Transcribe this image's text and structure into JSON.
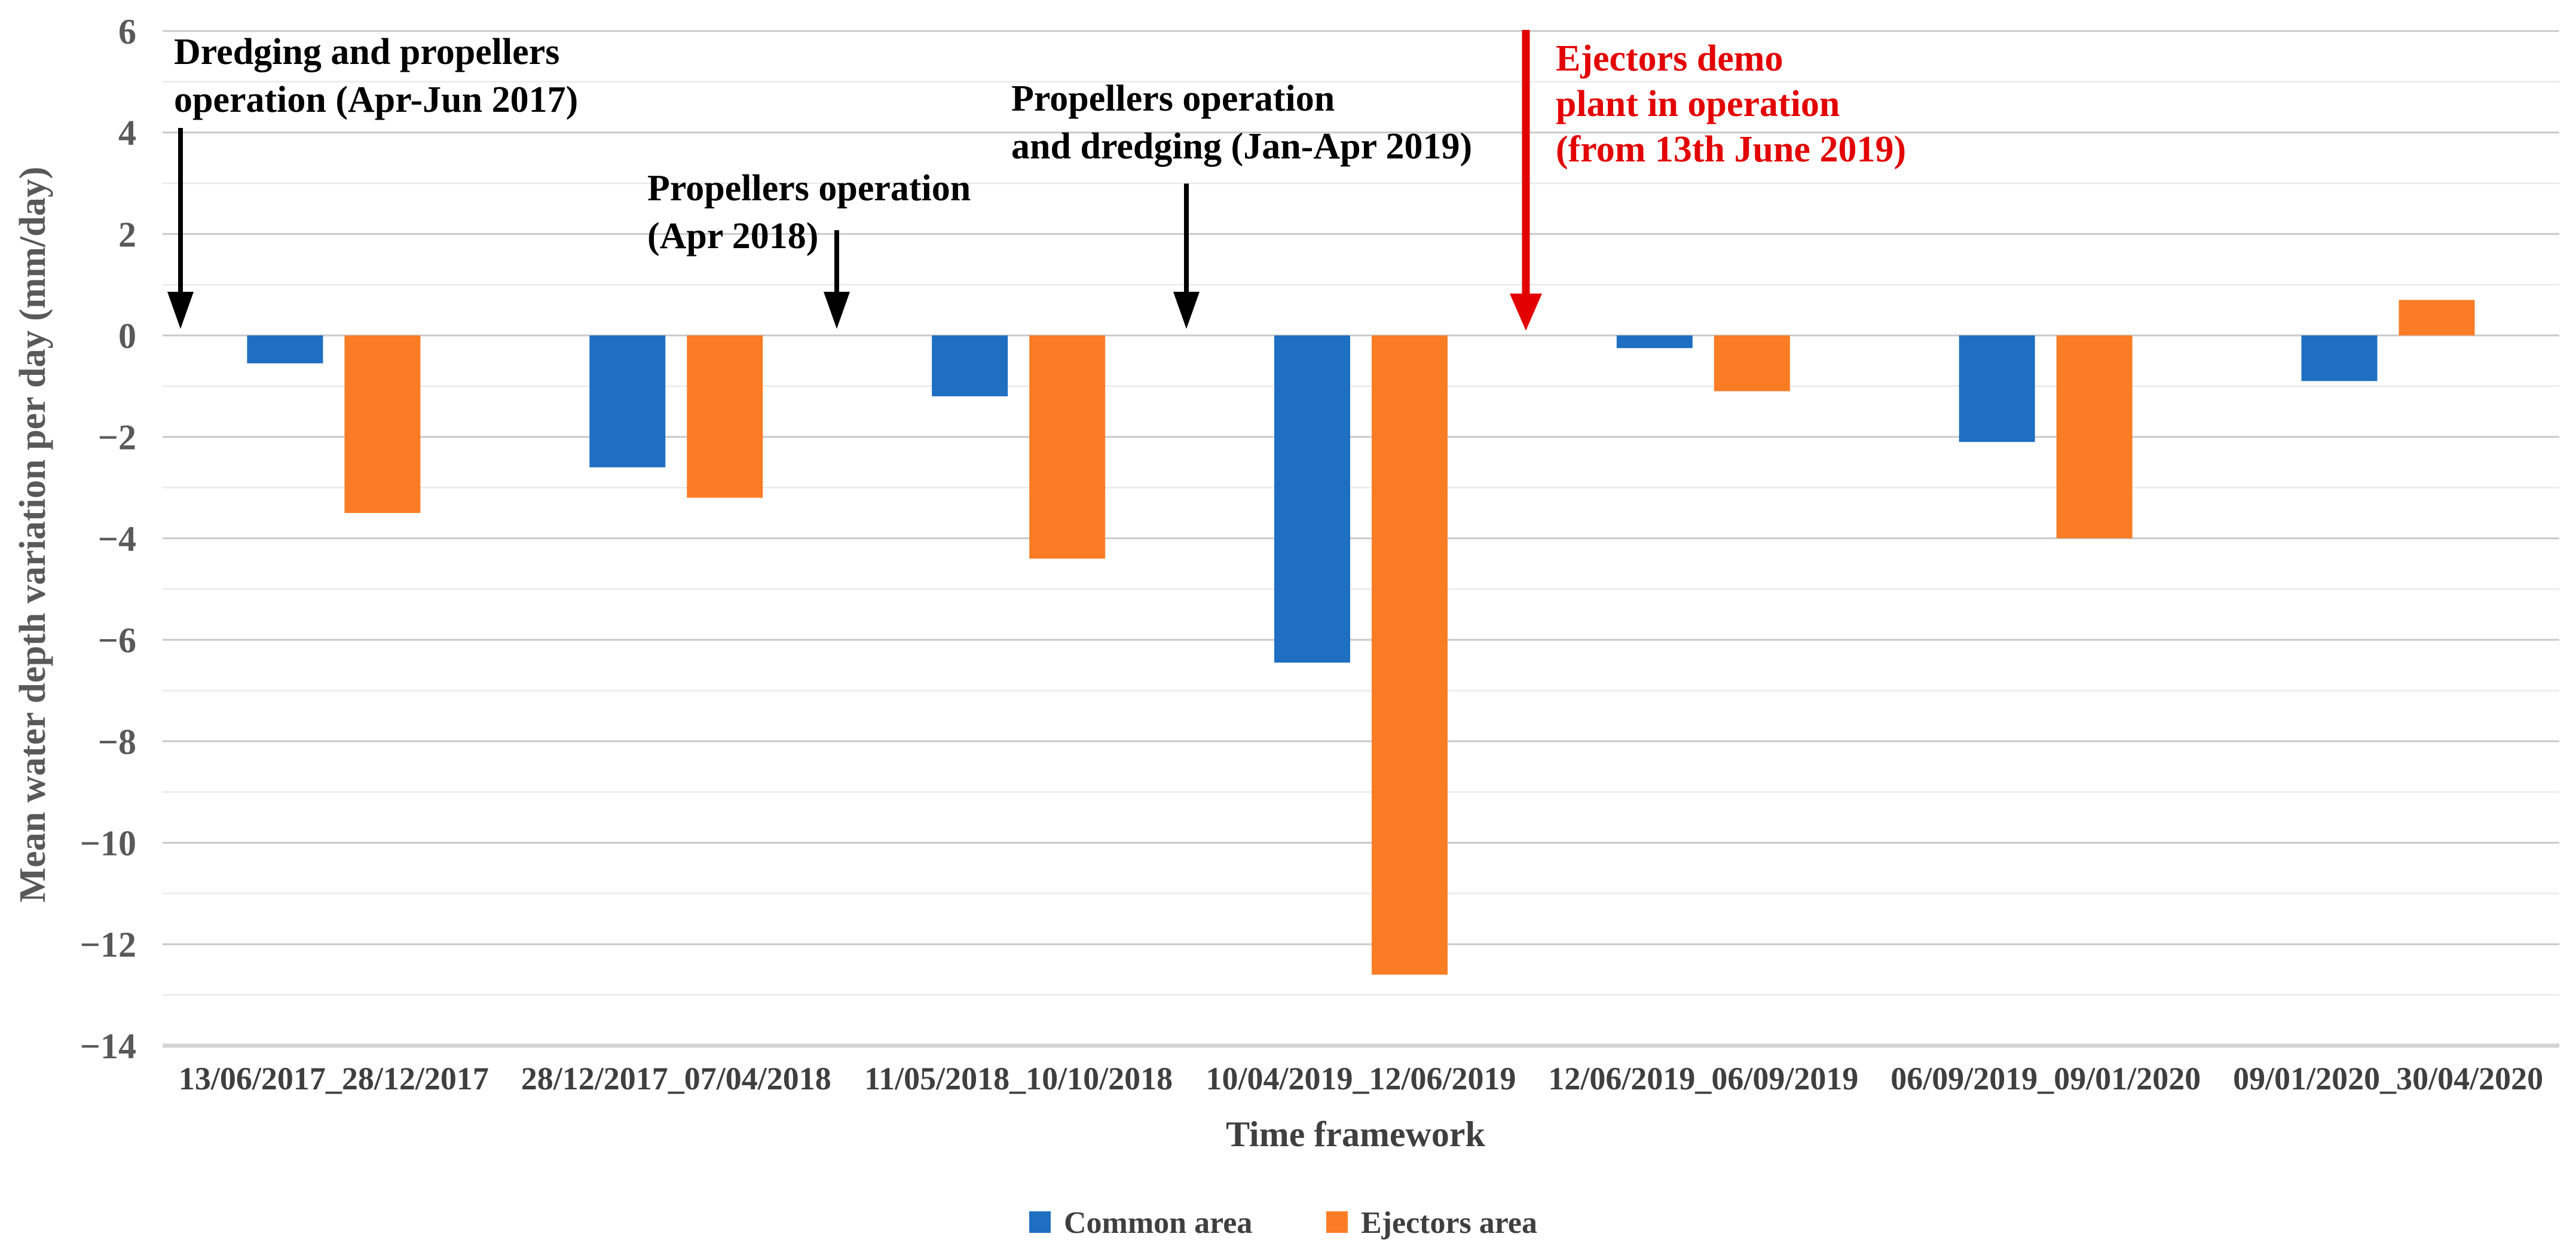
{
  "chart_data": {
    "type": "bar",
    "title": "",
    "xlabel": "Time framework",
    "ylabel": "Mean water depth variation per day (mm/day)",
    "ylim": [
      -14,
      6
    ],
    "ytick_step": 2,
    "gridline_step": 1,
    "grid": true,
    "legend_position": "bottom",
    "categories": [
      "13/06/2017_28/12/2017",
      "28/12/2017_07/04/2018",
      "11/05/2018_10/10/2018",
      "10/04/2019_12/06/2019",
      "12/06/2019_06/09/2019",
      "06/09/2019_09/01/2020",
      "09/01/2020_30/04/2020"
    ],
    "series": [
      {
        "name": "Common area",
        "color": "#1E6FC2",
        "values": [
          -0.55,
          -2.6,
          -1.2,
          -6.45,
          -0.25,
          -2.1,
          -0.9
        ]
      },
      {
        "name": "Ejectors area",
        "color": "#FA7D26",
        "values": [
          -3.5,
          -3.2,
          -4.4,
          -12.6,
          -1.1,
          -4.0,
          0.7
        ]
      }
    ],
    "annotations": [
      {
        "id": "dredging-propellers-2017",
        "text_lines": [
          "Dredging and propellers",
          "operation (Apr-Jun 2017)"
        ],
        "color": "#000000",
        "text_x": 291,
        "text_y": 55,
        "line_height": 80,
        "arrow": {
          "x": 302,
          "y_top": 214,
          "y_tip": 550,
          "color": "#000000"
        }
      },
      {
        "id": "propellers-2018",
        "text_lines": [
          "Propellers operation",
          "(Apr 2018)"
        ],
        "color": "#000000",
        "text_x": 1083,
        "text_y": 283,
        "line_height": 80,
        "arrow": {
          "x": 1400,
          "y_top": 385,
          "y_tip": 550,
          "color": "#000000"
        }
      },
      {
        "id": "propellers-dredging-2019",
        "text_lines": [
          "Propellers operation",
          "and dredging (Jan-Apr 2019)"
        ],
        "color": "#000000",
        "text_x": 1692,
        "text_y": 133,
        "line_height": 80,
        "arrow": {
          "x": 1985,
          "y_top": 307,
          "y_tip": 550,
          "color": "#000000"
        }
      },
      {
        "id": "ejectors-demo-plant",
        "text_lines": [
          "Ejectors demo",
          "plant in operation",
          "(from 13th June 2019)"
        ],
        "color": "#E30000",
        "text_x": 2603,
        "text_y": 66,
        "line_height": 76,
        "arrow": {
          "x": 2553,
          "y_top": 50,
          "y_tip": 553,
          "color": "#E30000"
        }
      }
    ]
  },
  "colors": {
    "grid_major": "#C9C9C9",
    "grid_minor": "#EAEAEA",
    "axis_bottom_line": "#D4D4D4",
    "y_tick_label": "#595959",
    "x_tick_label": "#3F3F3F",
    "axis_title": "#595959",
    "xlabel_title": "#3F3F3F",
    "legend_text": "#3F3F3F",
    "background": "#FFFFFF"
  }
}
